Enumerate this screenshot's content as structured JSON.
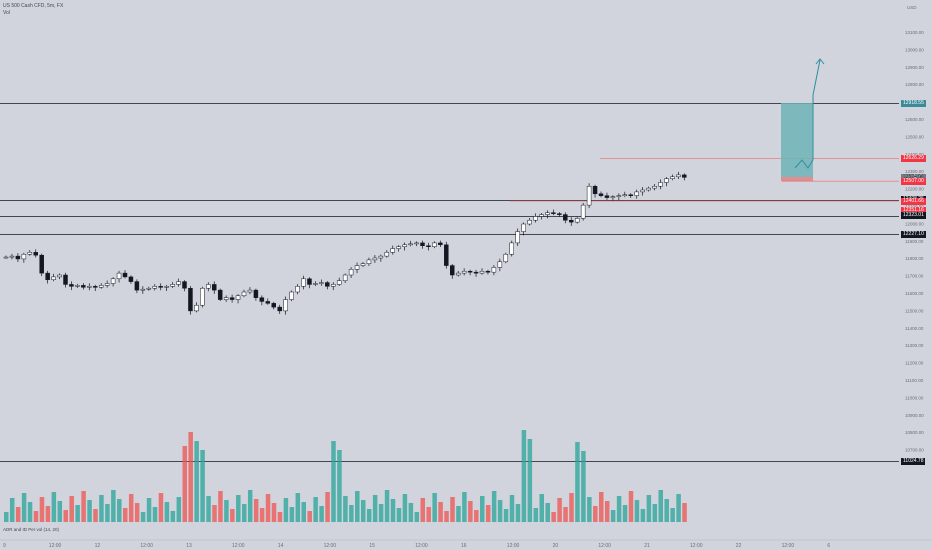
{
  "header": {
    "symbol_line": "US 500 Cash CFD, 5m, FX",
    "sub_line": "Vol"
  },
  "volume_label": "ADR and ID Per vol (14, 20)",
  "price_axis": {
    "currency": "USD",
    "ticks": [
      "13100.00",
      "13000.00",
      "12900.00",
      "12800.00",
      "12700.00",
      "12600.00",
      "12500.00",
      "12400.00",
      "12300.00",
      "12200.00",
      "12100.00",
      "12000.00",
      "11900.00",
      "11800.00",
      "11700.00",
      "11600.00",
      "11500.00",
      "11400.00",
      "11300.00",
      "11200.00",
      "11100.00",
      "11000.00",
      "10900.00",
      "10800.00",
      "10700.00"
    ]
  },
  "badges": [
    {
      "key": "a",
      "text": "12920.67",
      "style": "b-dark",
      "price": 12920.67
    },
    {
      "key": "b",
      "text": "12918.55",
      "style": "b-teal",
      "price": 12918.55
    },
    {
      "key": "c",
      "text": "12626.29",
      "style": "b-red",
      "price": 12626.29
    },
    {
      "key": "d",
      "text": "12528.75",
      "style": "b-gray",
      "price": 12528.75
    },
    {
      "key": "e",
      "text": "12524.96",
      "style": "b-plain",
      "price": 12524.96
    },
    {
      "key": "f",
      "text": "02:32",
      "style": "b-plain",
      "price": 12500
    },
    {
      "key": "g",
      "text": "12507.00",
      "style": "b-red",
      "price": 12507.0
    },
    {
      "key": "h",
      "text": "12408.25",
      "style": "b-dark",
      "price": 12408.25
    },
    {
      "key": "i",
      "text": "12401.66",
      "style": "b-red",
      "price": 12401.66
    },
    {
      "key": "j",
      "text": "12351.16",
      "style": "b-red",
      "price": 12351.16
    },
    {
      "key": "k",
      "text": "12323.01",
      "style": "b-dark",
      "price": 12323.01
    },
    {
      "key": "l",
      "text": "12227.10",
      "style": "b-dark",
      "price": 12227.1
    },
    {
      "key": "m",
      "text": "11024.78",
      "style": "b-dark",
      "price": 11024.78
    }
  ],
  "time_axis": [
    "9",
    "12:00",
    "12",
    "12:00",
    "13",
    "12:00",
    "14",
    "12:00",
    "15",
    "12:00",
    "16",
    "12:00",
    "20",
    "12:00",
    "21",
    "12:00",
    "22",
    "12:00",
    "6"
  ],
  "colors": {
    "up": "#26a69a",
    "down": "#ef5350",
    "line": "#131722",
    "position_fill": "#6fb4b6",
    "arrow": "#2e8ea0"
  },
  "chart_data": {
    "type": "candlestick",
    "title": "US 500 Cash CFD, 5m, FX",
    "horizontal_levels": [
      12920.67,
      12408.25,
      12323.01,
      12227.1,
      11024.78
    ],
    "close_series": [
      12105,
      12110,
      12095,
      12120,
      12130,
      12115,
      12020,
      11985,
      12000,
      12010,
      11960,
      11950,
      11955,
      11945,
      11950,
      11945,
      11955,
      11965,
      11990,
      12020,
      12000,
      11975,
      11930,
      11935,
      11940,
      11950,
      11945,
      11950,
      11960,
      11975,
      11940,
      11820,
      11850,
      11940,
      11960,
      11930,
      11880,
      11890,
      11880,
      11900,
      11920,
      11930,
      11890,
      11870,
      11860,
      11840,
      11820,
      11880,
      11920,
      11950,
      11990,
      11960,
      11965,
      11970,
      11950,
      11960,
      11980,
      12010,
      12040,
      12060,
      12070,
      12090,
      12100,
      12110,
      12130,
      12150,
      12160,
      12170,
      12175,
      12180,
      12165,
      12160,
      12180,
      12170,
      12060,
      12010,
      12020,
      12030,
      12025,
      12020,
      12030,
      12025,
      12050,
      12080,
      12120,
      12180,
      12240,
      12280,
      12300,
      12320,
      12330,
      12340,
      12335,
      12330,
      12300,
      12290,
      12310,
      12380,
      12480,
      12440,
      12430,
      12420,
      12425,
      12430,
      12435,
      12430,
      12450,
      12460,
      12470,
      12480,
      12500,
      12520,
      12530,
      12540,
      12527
    ]
  }
}
